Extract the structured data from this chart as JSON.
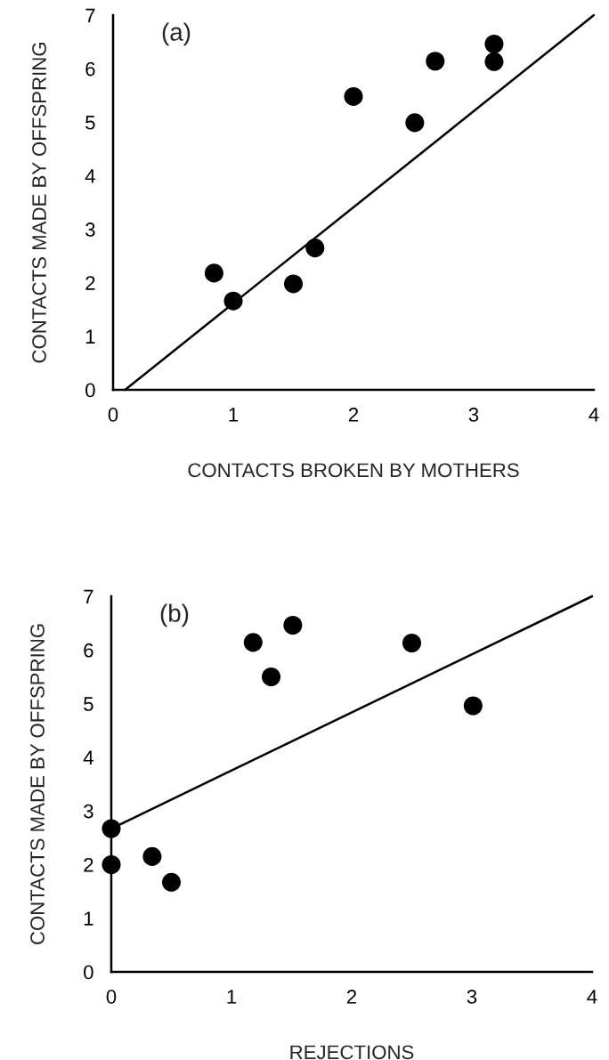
{
  "chart_data": [
    {
      "type": "scatter",
      "xlabel": "CONTACTS BROKEN BY MOTHERS",
      "ylabel": "CONTACTS MADE BY OFFSPRING",
      "annotations": [
        "(a)"
      ],
      "grid": false,
      "xlim": [
        0,
        4
      ],
      "xticks": [
        0,
        1,
        2,
        3,
        4
      ],
      "ylim": [
        0,
        7
      ],
      "yticks": [
        0,
        1,
        2,
        3,
        4,
        5,
        6,
        7
      ],
      "series": [
        {
          "color": "#000000",
          "marker": "circle",
          "x": [
            0.84,
            1.0,
            1.5,
            1.68,
            2.0,
            2.51,
            2.68,
            3.17,
            3.17
          ],
          "values": [
            2.18,
            1.66,
            1.98,
            2.65,
            5.48,
            4.99,
            6.14,
            6.46,
            6.13
          ]
        },
        {
          "type": "line",
          "color": "#000000",
          "x": [
            0.1,
            4.0
          ],
          "values": [
            0,
            7.0
          ]
        }
      ]
    },
    {
      "type": "scatter",
      "xlabel": "REJECTIONS",
      "ylabel": "CONTACTS MADE BY OFFSPRING",
      "annotations": [
        "(b)"
      ],
      "grid": false,
      "xlim": [
        0,
        4
      ],
      "xticks": [
        0,
        1,
        2,
        3,
        4
      ],
      "ylim": [
        0,
        7
      ],
      "yticks": [
        0,
        1,
        2,
        3,
        4,
        5,
        6,
        7
      ],
      "series": [
        {
          "color": "#000000",
          "marker": "circle",
          "x": [
            0,
            0,
            0.34,
            0.5,
            1.18,
            1.33,
            1.51,
            2.5,
            3.01
          ],
          "values": [
            2.67,
            2.0,
            2.15,
            1.67,
            6.14,
            5.5,
            6.46,
            6.13,
            4.96
          ]
        },
        {
          "type": "line",
          "color": "#000000",
          "x": [
            0,
            4.0
          ],
          "values": [
            2.67,
            7.0
          ]
        }
      ]
    }
  ]
}
